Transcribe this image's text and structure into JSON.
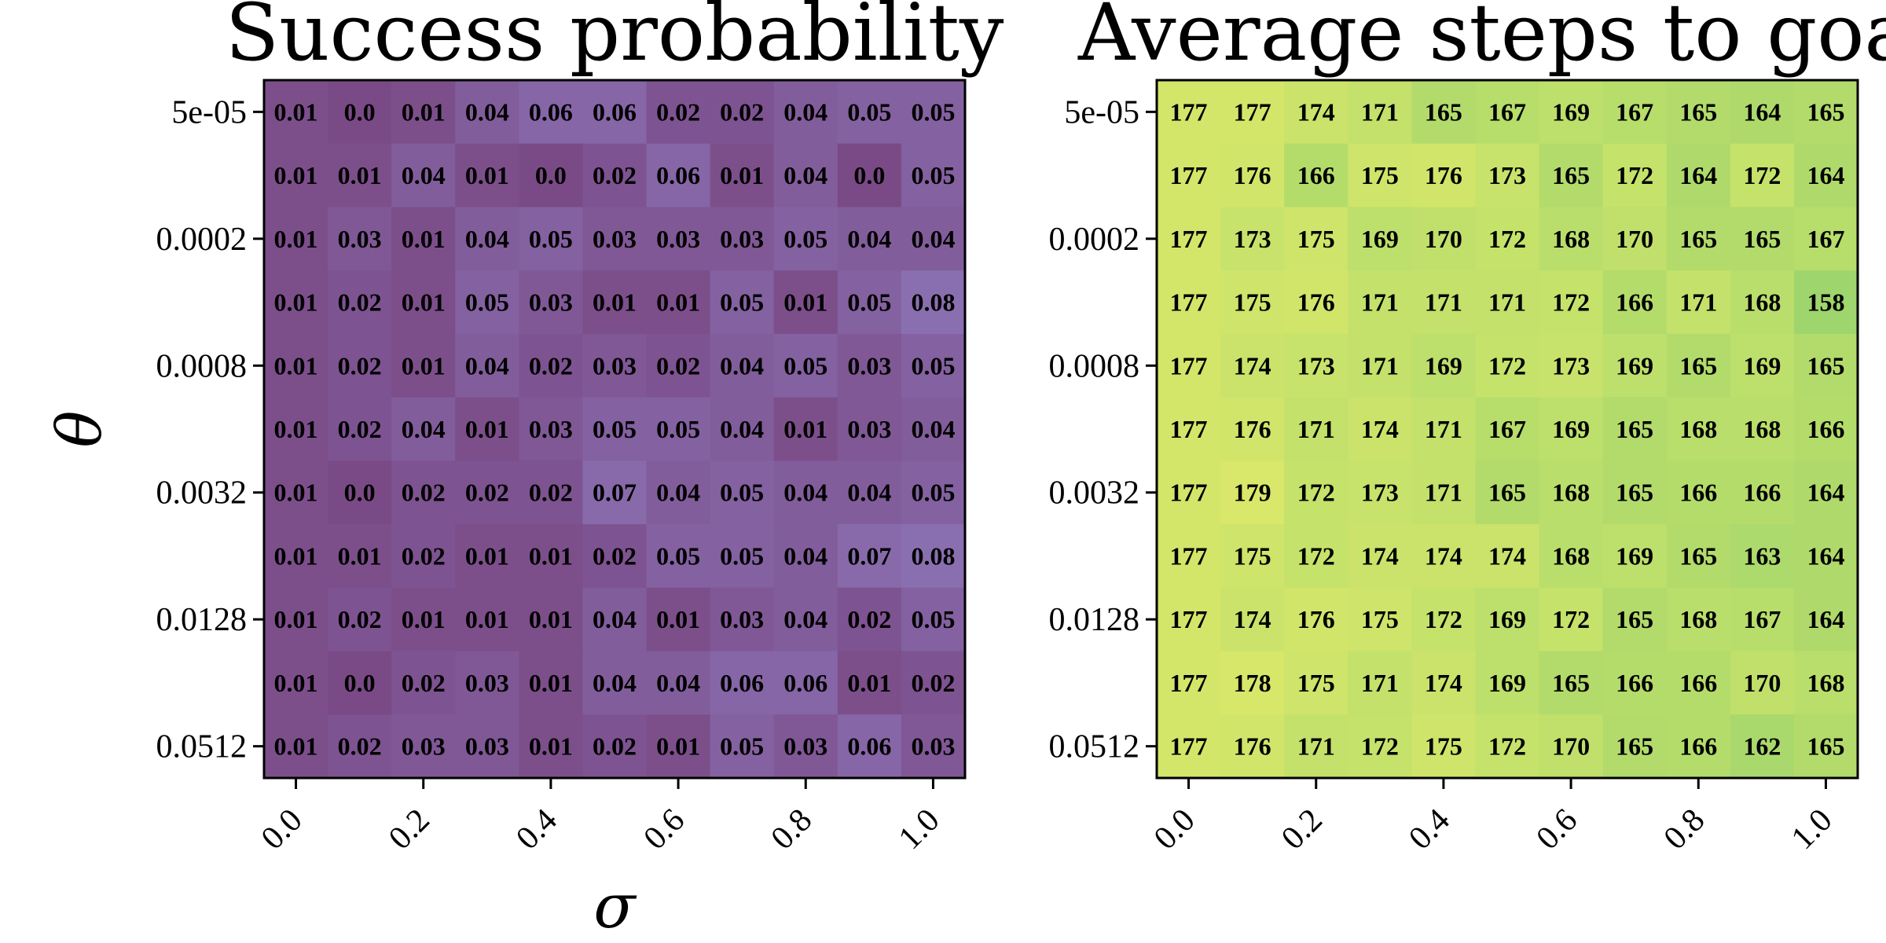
{
  "chart_data": [
    {
      "type": "heatmap",
      "title": "Success probability",
      "xlabel": "σ",
      "ylabel": "θ",
      "x_ticks": [
        "0.0",
        "0.2",
        "0.4",
        "0.6",
        "0.8",
        "1.0"
      ],
      "y_ticks": [
        "5e-05",
        "0.0002",
        "0.0008",
        "0.0032",
        "0.0128",
        "0.0512"
      ],
      "value_range": [
        0,
        0.08
      ],
      "colormap_low": "#7a4a86",
      "colormap_high": "#8a6fb0",
      "values": [
        [
          "0.01",
          "0.0",
          "0.01",
          "0.04",
          "0.06",
          "0.06",
          "0.02",
          "0.02",
          "0.04",
          "0.05",
          "0.05"
        ],
        [
          "0.01",
          "0.01",
          "0.04",
          "0.01",
          "0.0",
          "0.02",
          "0.06",
          "0.01",
          "0.04",
          "0.0",
          "0.05"
        ],
        [
          "0.01",
          "0.03",
          "0.01",
          "0.04",
          "0.05",
          "0.03",
          "0.03",
          "0.03",
          "0.05",
          "0.04",
          "0.04"
        ],
        [
          "0.01",
          "0.02",
          "0.01",
          "0.05",
          "0.03",
          "0.01",
          "0.01",
          "0.05",
          "0.01",
          "0.05",
          "0.08"
        ],
        [
          "0.01",
          "0.02",
          "0.01",
          "0.04",
          "0.02",
          "0.03",
          "0.02",
          "0.04",
          "0.05",
          "0.03",
          "0.05"
        ],
        [
          "0.01",
          "0.02",
          "0.04",
          "0.01",
          "0.03",
          "0.05",
          "0.05",
          "0.04",
          "0.01",
          "0.03",
          "0.04"
        ],
        [
          "0.01",
          "0.0",
          "0.02",
          "0.02",
          "0.02",
          "0.07",
          "0.04",
          "0.05",
          "0.04",
          "0.04",
          "0.05"
        ],
        [
          "0.01",
          "0.01",
          "0.02",
          "0.01",
          "0.01",
          "0.02",
          "0.05",
          "0.05",
          "0.04",
          "0.07",
          "0.08"
        ],
        [
          "0.01",
          "0.02",
          "0.01",
          "0.01",
          "0.01",
          "0.04",
          "0.01",
          "0.03",
          "0.04",
          "0.02",
          "0.05"
        ],
        [
          "0.01",
          "0.0",
          "0.02",
          "0.03",
          "0.01",
          "0.04",
          "0.04",
          "0.06",
          "0.06",
          "0.01",
          "0.02"
        ],
        [
          "0.01",
          "0.02",
          "0.03",
          "0.03",
          "0.01",
          "0.02",
          "0.01",
          "0.05",
          "0.03",
          "0.06",
          "0.03"
        ]
      ]
    },
    {
      "type": "heatmap",
      "title": "Average steps to goal",
      "xlabel": "",
      "ylabel": "",
      "x_ticks": [
        "0.0",
        "0.2",
        "0.4",
        "0.6",
        "0.8",
        "1.0"
      ],
      "y_ticks": [
        "5e-05",
        "0.0002",
        "0.0008",
        "0.0032",
        "0.0128",
        "0.0512"
      ],
      "value_range": [
        158,
        179
      ],
      "colormap_low": "#9ed56c",
      "colormap_high": "#d9e86a",
      "values": [
        [
          "177",
          "177",
          "174",
          "171",
          "165",
          "167",
          "169",
          "167",
          "165",
          "164",
          "165"
        ],
        [
          "177",
          "176",
          "166",
          "175",
          "176",
          "173",
          "165",
          "172",
          "164",
          "172",
          "164"
        ],
        [
          "177",
          "173",
          "175",
          "169",
          "170",
          "172",
          "168",
          "170",
          "165",
          "165",
          "167"
        ],
        [
          "177",
          "175",
          "176",
          "171",
          "171",
          "171",
          "172",
          "166",
          "171",
          "168",
          "158"
        ],
        [
          "177",
          "174",
          "173",
          "171",
          "169",
          "172",
          "173",
          "169",
          "165",
          "169",
          "165"
        ],
        [
          "177",
          "176",
          "171",
          "174",
          "171",
          "167",
          "169",
          "165",
          "168",
          "168",
          "166"
        ],
        [
          "177",
          "179",
          "172",
          "173",
          "171",
          "165",
          "168",
          "165",
          "166",
          "166",
          "164"
        ],
        [
          "177",
          "175",
          "172",
          "174",
          "174",
          "174",
          "168",
          "169",
          "165",
          "163",
          "164"
        ],
        [
          "177",
          "174",
          "176",
          "175",
          "172",
          "169",
          "172",
          "165",
          "168",
          "167",
          "164"
        ],
        [
          "177",
          "178",
          "175",
          "171",
          "174",
          "169",
          "165",
          "166",
          "166",
          "170",
          "168"
        ],
        [
          "177",
          "176",
          "171",
          "172",
          "175",
          "172",
          "170",
          "165",
          "166",
          "162",
          "165"
        ]
      ]
    }
  ]
}
